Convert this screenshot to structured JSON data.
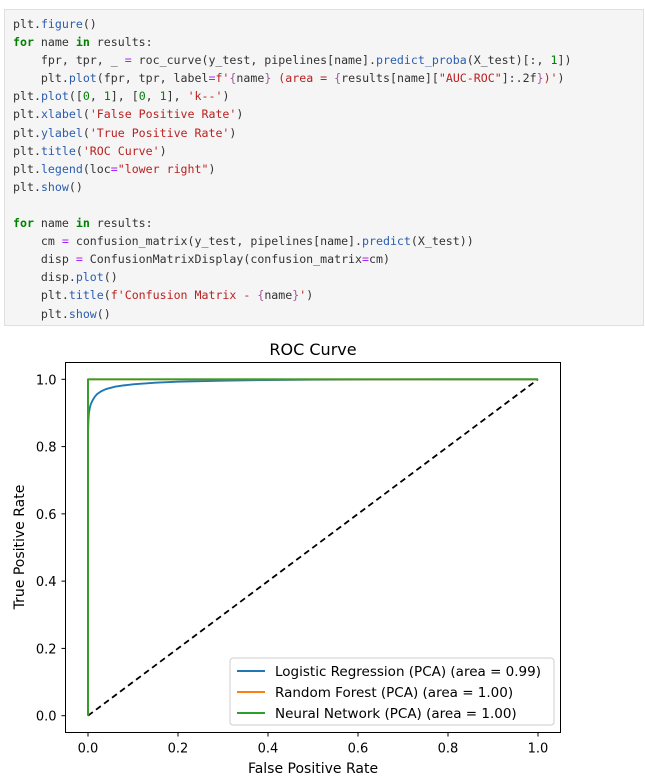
{
  "code_cell": {
    "lines": [
      [
        {
          "t": "plt",
          "c": ""
        },
        {
          "t": ".",
          "c": ""
        },
        {
          "t": "figure",
          "c": "fn"
        },
        {
          "t": "()",
          "c": ""
        }
      ],
      [
        {
          "t": "for",
          "c": "kw"
        },
        {
          "t": " name ",
          "c": ""
        },
        {
          "t": "in",
          "c": "kw"
        },
        {
          "t": " results:",
          "c": ""
        }
      ],
      [
        {
          "t": "    fpr, tpr, _ ",
          "c": ""
        },
        {
          "t": "=",
          "c": "op"
        },
        {
          "t": " roc_curve(y_test, pipelines[name].",
          "c": ""
        },
        {
          "t": "predict_proba",
          "c": "fn"
        },
        {
          "t": "(X_test)[:, ",
          "c": ""
        },
        {
          "t": "1",
          "c": "num"
        },
        {
          "t": "])",
          "c": ""
        }
      ],
      [
        {
          "t": "    plt",
          "c": ""
        },
        {
          "t": ".",
          "c": ""
        },
        {
          "t": "plot",
          "c": "fn"
        },
        {
          "t": "(fpr, tpr, label",
          "c": ""
        },
        {
          "t": "=",
          "c": "op"
        },
        {
          "t": "f'",
          "c": "str"
        },
        {
          "t": "{",
          "c": "fstr"
        },
        {
          "t": "name",
          "c": ""
        },
        {
          "t": "}",
          "c": "fstr"
        },
        {
          "t": " (area = ",
          "c": "str"
        },
        {
          "t": "{",
          "c": "fstr"
        },
        {
          "t": "results[name][",
          "c": ""
        },
        {
          "t": "\"AUC-ROC\"",
          "c": "str"
        },
        {
          "t": "]:.2f",
          "c": ""
        },
        {
          "t": "}",
          "c": "fstr"
        },
        {
          "t": ")'",
          "c": "str"
        },
        {
          "t": ")",
          "c": ""
        }
      ],
      [
        {
          "t": "plt",
          "c": ""
        },
        {
          "t": ".",
          "c": ""
        },
        {
          "t": "plot",
          "c": "fn"
        },
        {
          "t": "([",
          "c": ""
        },
        {
          "t": "0",
          "c": "num"
        },
        {
          "t": ", ",
          "c": ""
        },
        {
          "t": "1",
          "c": "num"
        },
        {
          "t": "], [",
          "c": ""
        },
        {
          "t": "0",
          "c": "num"
        },
        {
          "t": ", ",
          "c": ""
        },
        {
          "t": "1",
          "c": "num"
        },
        {
          "t": "], ",
          "c": ""
        },
        {
          "t": "'k--'",
          "c": "str"
        },
        {
          "t": ")",
          "c": ""
        }
      ],
      [
        {
          "t": "plt",
          "c": ""
        },
        {
          "t": ".",
          "c": ""
        },
        {
          "t": "xlabel",
          "c": "fn"
        },
        {
          "t": "(",
          "c": ""
        },
        {
          "t": "'False Positive Rate'",
          "c": "str"
        },
        {
          "t": ")",
          "c": ""
        }
      ],
      [
        {
          "t": "plt",
          "c": ""
        },
        {
          "t": ".",
          "c": ""
        },
        {
          "t": "ylabel",
          "c": "fn"
        },
        {
          "t": "(",
          "c": ""
        },
        {
          "t": "'True Positive Rate'",
          "c": "str"
        },
        {
          "t": ")",
          "c": ""
        }
      ],
      [
        {
          "t": "plt",
          "c": ""
        },
        {
          "t": ".",
          "c": ""
        },
        {
          "t": "title",
          "c": "fn"
        },
        {
          "t": "(",
          "c": ""
        },
        {
          "t": "'ROC Curve'",
          "c": "str"
        },
        {
          "t": ")",
          "c": ""
        }
      ],
      [
        {
          "t": "plt",
          "c": ""
        },
        {
          "t": ".",
          "c": ""
        },
        {
          "t": "legend",
          "c": "fn"
        },
        {
          "t": "(loc",
          "c": ""
        },
        {
          "t": "=",
          "c": "op"
        },
        {
          "t": "\"lower right\"",
          "c": "str"
        },
        {
          "t": ")",
          "c": ""
        }
      ],
      [
        {
          "t": "plt",
          "c": ""
        },
        {
          "t": ".",
          "c": ""
        },
        {
          "t": "show",
          "c": "fn"
        },
        {
          "t": "()",
          "c": ""
        }
      ],
      [],
      [
        {
          "t": "for",
          "c": "kw"
        },
        {
          "t": " name ",
          "c": ""
        },
        {
          "t": "in",
          "c": "kw"
        },
        {
          "t": " results:",
          "c": ""
        }
      ],
      [
        {
          "t": "    cm ",
          "c": ""
        },
        {
          "t": "=",
          "c": "op"
        },
        {
          "t": " confusion_matrix(y_test, pipelines[name].",
          "c": ""
        },
        {
          "t": "predict",
          "c": "fn"
        },
        {
          "t": "(X_test))",
          "c": ""
        }
      ],
      [
        {
          "t": "    disp ",
          "c": ""
        },
        {
          "t": "=",
          "c": "op"
        },
        {
          "t": " ConfusionMatrixDisplay(confusion_matrix",
          "c": ""
        },
        {
          "t": "=",
          "c": "op"
        },
        {
          "t": "cm)",
          "c": ""
        }
      ],
      [
        {
          "t": "    disp",
          "c": ""
        },
        {
          "t": ".",
          "c": ""
        },
        {
          "t": "plot",
          "c": "fn"
        },
        {
          "t": "()",
          "c": ""
        }
      ],
      [
        {
          "t": "    plt",
          "c": ""
        },
        {
          "t": ".",
          "c": ""
        },
        {
          "t": "title",
          "c": "fn"
        },
        {
          "t": "(",
          "c": ""
        },
        {
          "t": "f'Confusion Matrix - ",
          "c": "str"
        },
        {
          "t": "{",
          "c": "fstr"
        },
        {
          "t": "name",
          "c": ""
        },
        {
          "t": "}",
          "c": "fstr"
        },
        {
          "t": "'",
          "c": "str"
        },
        {
          "t": ")",
          "c": ""
        }
      ],
      [
        {
          "t": "    plt",
          "c": ""
        },
        {
          "t": ".",
          "c": ""
        },
        {
          "t": "show",
          "c": "fn"
        },
        {
          "t": "()",
          "c": ""
        }
      ]
    ]
  },
  "chart_data": {
    "type": "line",
    "title": "ROC Curve",
    "xlabel": "False Positive Rate",
    "ylabel": "True Positive Rate",
    "xlim": [
      -0.05,
      1.05
    ],
    "ylim": [
      -0.05,
      1.05
    ],
    "xticks": [
      0.0,
      0.2,
      0.4,
      0.6,
      0.8,
      1.0
    ],
    "yticks": [
      0.0,
      0.2,
      0.4,
      0.6,
      0.8,
      1.0
    ],
    "xtick_labels": [
      "0.0",
      "0.2",
      "0.4",
      "0.6",
      "0.8",
      "1.0"
    ],
    "ytick_labels": [
      "0.0",
      "0.2",
      "0.4",
      "0.6",
      "0.8",
      "1.0"
    ],
    "grid": false,
    "legend_placement": "lower right",
    "series": [
      {
        "name": "Logistic Regression (PCA) (area = 0.99)",
        "color": "#1f77b4",
        "x": [
          0,
          0.0,
          0.001,
          0.002,
          0.004,
          0.006,
          0.01,
          0.015,
          0.02,
          0.03,
          0.04,
          0.06,
          0.08,
          0.1,
          0.15,
          0.2,
          0.3,
          0.4,
          0.5,
          0.6,
          0.8,
          1.0
        ],
        "y": [
          0,
          0.84,
          0.88,
          0.9,
          0.915,
          0.925,
          0.937,
          0.948,
          0.956,
          0.965,
          0.971,
          0.978,
          0.982,
          0.985,
          0.99,
          0.993,
          0.996,
          0.998,
          0.999,
          0.9995,
          1.0,
          1.0
        ]
      },
      {
        "name": "Random Forest (PCA) (area = 1.00)",
        "color": "#ff7f0e",
        "x": [
          0,
          0.0,
          1.0
        ],
        "y": [
          0,
          1.0,
          1.0
        ]
      },
      {
        "name": "Neural Network (PCA) (area = 1.00)",
        "color": "#2ca02c",
        "x": [
          0,
          0.0,
          1.0
        ],
        "y": [
          0,
          1.0,
          1.0
        ]
      }
    ],
    "reference_line": {
      "x": [
        0,
        1
      ],
      "y": [
        0,
        1
      ],
      "color": "#000000",
      "style": "dashed"
    }
  }
}
